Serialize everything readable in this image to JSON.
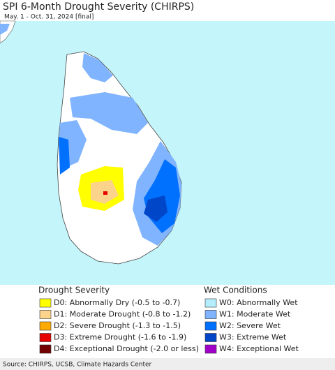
{
  "title": "SPI 6-Month Drought Severity (CHIRPS)",
  "subtitle": "May. 1 - Oct. 31, 2024 [final]",
  "legend": {
    "drought": {
      "heading": "Drought Severity",
      "items": [
        {
          "label": "D0: Abnormally Dry (-0.5 to -0.7)",
          "color": "#ffff00"
        },
        {
          "label": "D1: Moderate Drought (-0.8 to -1.2)",
          "color": "#fcd38a"
        },
        {
          "label": "D2: Severe Drought (-1.3 to -1.5)",
          "color": "#ffaa00"
        },
        {
          "label": "D3: Extreme Drought (-1.6 to -1.9)",
          "color": "#e60000"
        },
        {
          "label": "D4: Exceptional Drought (-2.0 or less)",
          "color": "#730000"
        }
      ]
    },
    "wet": {
      "heading": "Wet Conditions",
      "items": [
        {
          "label": "W0: Abnormally Wet",
          "color": "#b4eefd"
        },
        {
          "label": "W1: Moderate Wet",
          "color": "#80b4ff"
        },
        {
          "label": "W2: Severe Wet",
          "color": "#0070ff"
        },
        {
          "label": "W3: Extreme Wet",
          "color": "#0046c8"
        },
        {
          "label": "W4: Exceptional Wet",
          "color": "#a000c8"
        }
      ]
    }
  },
  "source": "Source: CHIRPS, UCSB, Climate Hazards Center"
}
